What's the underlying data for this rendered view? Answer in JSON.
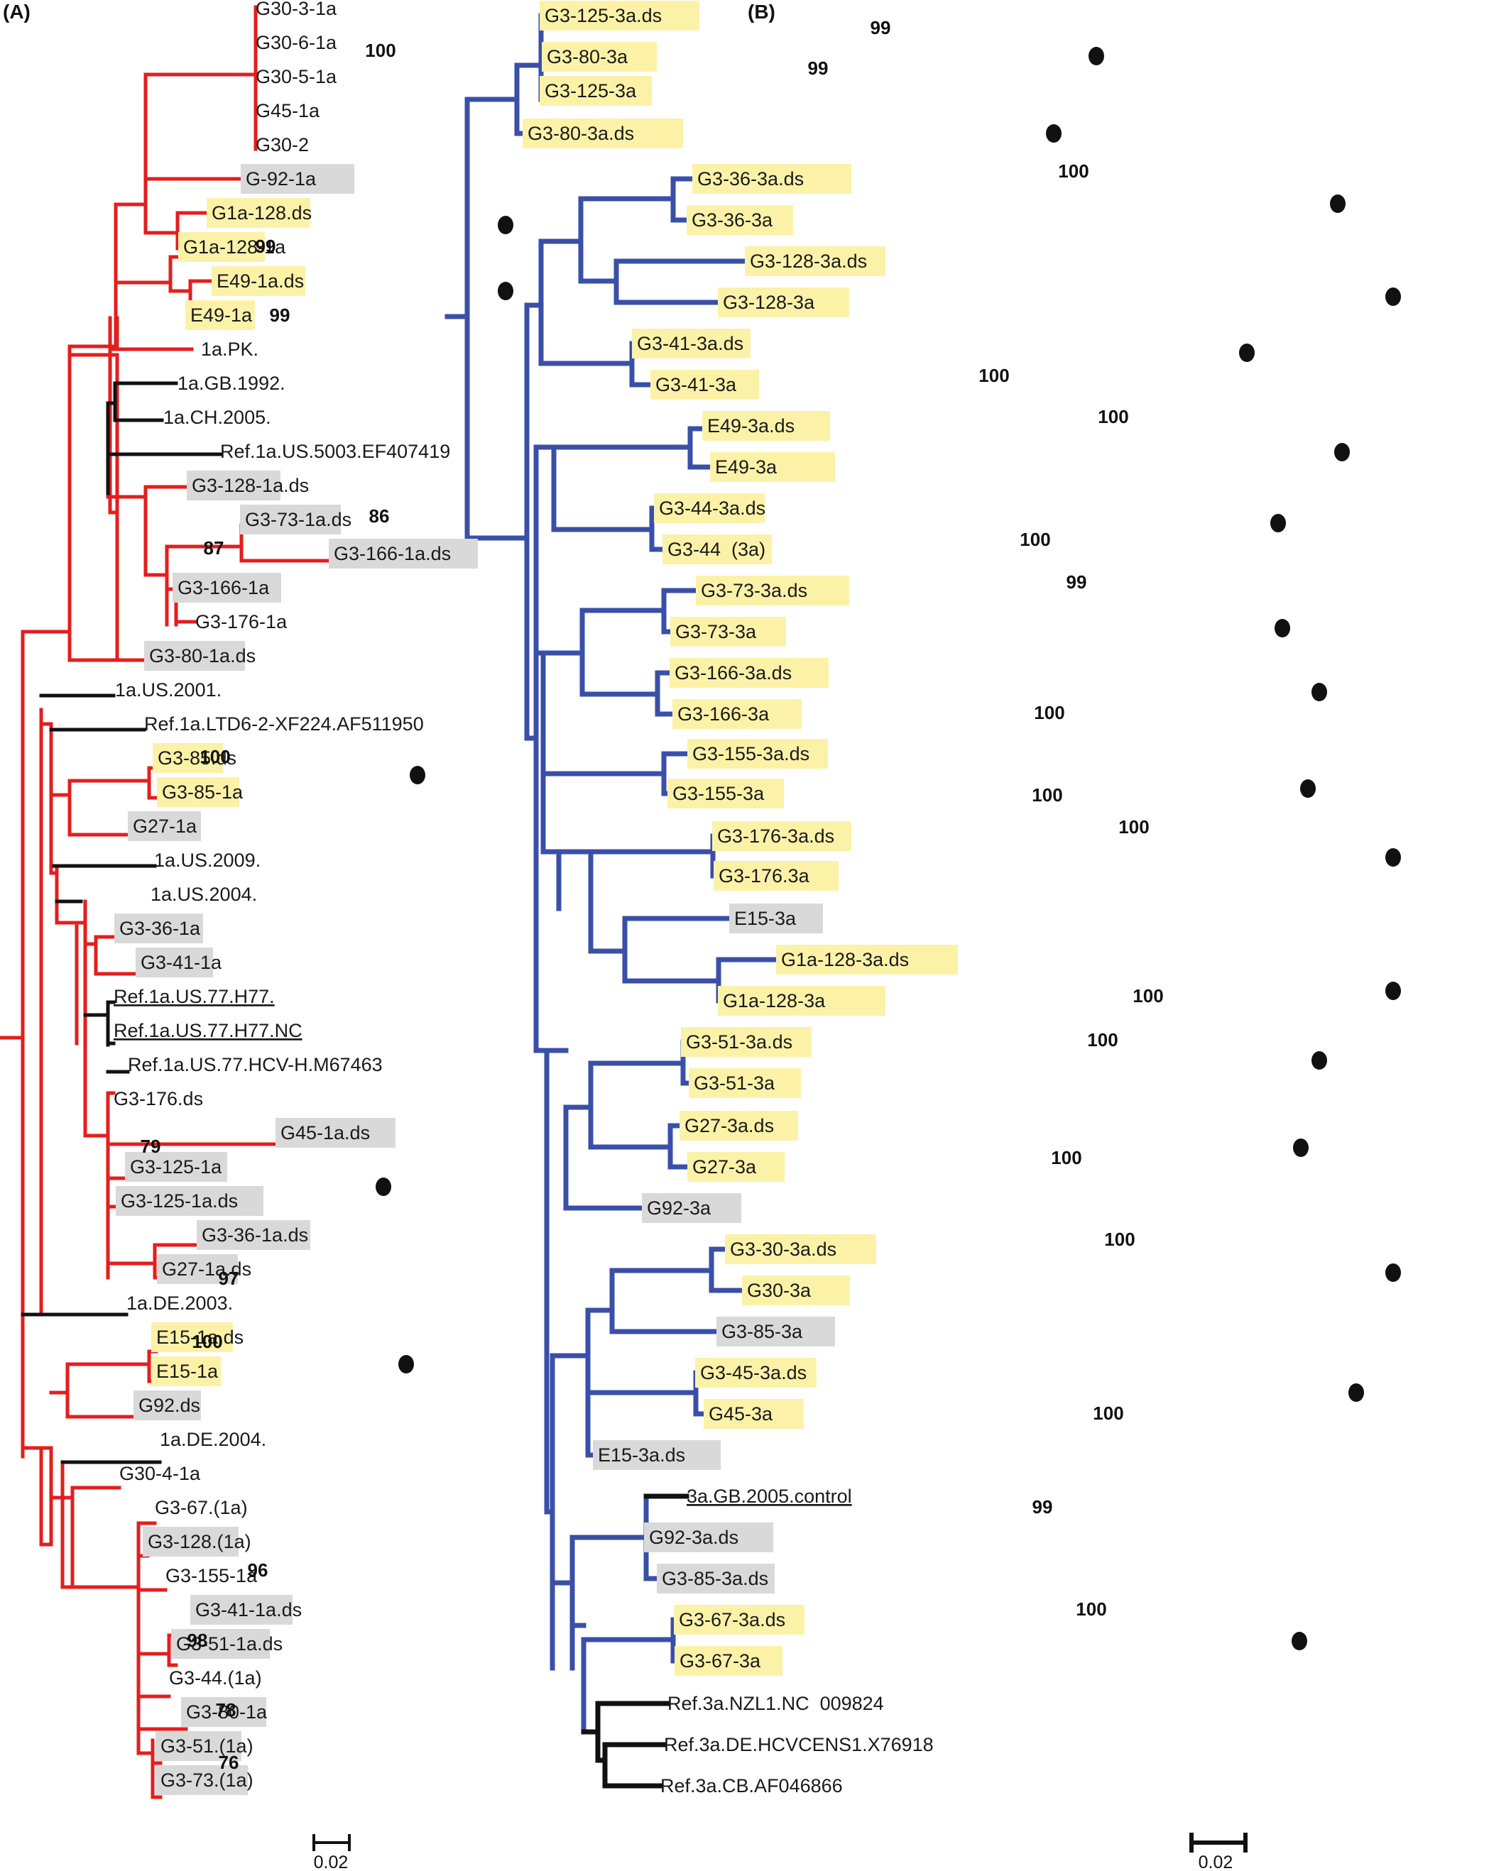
{
  "colors": {
    "genotype_1a": "#e41e1e",
    "genotype_3a": "#3a4fa8",
    "reference": "#111111",
    "yellow_box": "#fbf2a8",
    "grey_box": "#d9d9d9"
  },
  "panels": [
    {
      "label": "(A)",
      "scale_label": "0.02",
      "taxa": [
        {
          "id": "a1",
          "text": "G30-3-1a",
          "box": "none"
        },
        {
          "id": "a2",
          "text": "G30-6-1a",
          "box": "none"
        },
        {
          "id": "a3",
          "text": "G30-5-1a",
          "box": "none"
        },
        {
          "id": "a4",
          "text": "G45-1a",
          "box": "none"
        },
        {
          "id": "a5",
          "text": "G30-2",
          "box": "none"
        },
        {
          "id": "a6",
          "text": "G-92-1a",
          "box": "grey"
        },
        {
          "id": "a7",
          "text": "G1a-128.ds",
          "box": "yellow",
          "dot": true
        },
        {
          "id": "a8",
          "text": "G1a-128-1a",
          "box": "yellow"
        },
        {
          "id": "a9",
          "text": "E49-1a.ds",
          "box": "yellow",
          "dot": true
        },
        {
          "id": "a10",
          "text": "E49-1a",
          "box": "yellow"
        },
        {
          "id": "a11",
          "text": "1a.PK.",
          "box": "none"
        },
        {
          "id": "a12",
          "text": "1a.GB.1992.",
          "box": "none",
          "ref": true
        },
        {
          "id": "a13",
          "text": "1a.CH.2005.",
          "box": "none",
          "ref": true
        },
        {
          "id": "a14",
          "text": "Ref.1a.US.5003.EF407419",
          "box": "none",
          "ref": true
        },
        {
          "id": "a15",
          "text": "G3-128-1a.ds",
          "box": "grey"
        },
        {
          "id": "a16",
          "text": "G3-73-1a.ds",
          "box": "grey"
        },
        {
          "id": "a17",
          "text": "G3-166-1a.ds",
          "box": "grey"
        },
        {
          "id": "a18",
          "text": "G3-166-1a",
          "box": "grey"
        },
        {
          "id": "a19",
          "text": "G3-176-1a",
          "box": "none"
        },
        {
          "id": "a20",
          "text": "G3-80-1a.ds",
          "box": "grey"
        },
        {
          "id": "a21",
          "text": "1a.US.2001.",
          "box": "none",
          "ref": true
        },
        {
          "id": "a22",
          "text": "Ref.1a.LTD6-2-XF224.AF511950",
          "box": "none",
          "ref": true
        },
        {
          "id": "a23",
          "text": "G3-85.ds",
          "box": "yellow",
          "dot": true
        },
        {
          "id": "a24",
          "text": "G3-85-1a",
          "box": "yellow"
        },
        {
          "id": "a25",
          "text": "G27-1a",
          "box": "grey"
        },
        {
          "id": "a26",
          "text": "1a.US.2009.",
          "box": "none",
          "ref": true
        },
        {
          "id": "a27",
          "text": "1a.US.2004.",
          "box": "none",
          "ref": true
        },
        {
          "id": "a28",
          "text": "G3-36-1a",
          "box": "grey"
        },
        {
          "id": "a29",
          "text": "G3-41-1a",
          "box": "grey"
        },
        {
          "id": "a30",
          "text": "Ref.1a.US.77.H77.",
          "box": "none",
          "ref": true,
          "underline": true
        },
        {
          "id": "a31",
          "text": "Ref.1a.US.77.H77.NC",
          "box": "none",
          "ref": true,
          "underline": true
        },
        {
          "id": "a32",
          "text": "Ref.1a.US.77.HCV-H.M67463",
          "box": "none",
          "ref": true
        },
        {
          "id": "a33",
          "text": "G3-176.ds",
          "box": "none"
        },
        {
          "id": "a34",
          "text": "G45-1a.ds",
          "box": "grey"
        },
        {
          "id": "a35",
          "text": "G3-125-1a",
          "box": "grey",
          "dot": true
        },
        {
          "id": "a36",
          "text": "G3-125-1a.ds",
          "box": "grey"
        },
        {
          "id": "a37",
          "text": "G3-36-1a.ds",
          "box": "grey"
        },
        {
          "id": "a38",
          "text": "G27-1a.ds",
          "box": "grey"
        },
        {
          "id": "a39",
          "text": "1a.DE.2003.",
          "box": "none",
          "ref": true
        },
        {
          "id": "a40",
          "text": "E15-1a.ds",
          "box": "yellow",
          "dot": true
        },
        {
          "id": "a41",
          "text": "E15-1a",
          "box": "yellow"
        },
        {
          "id": "a42",
          "text": "G92.ds",
          "box": "grey"
        },
        {
          "id": "a43",
          "text": "1a.DE.2004.",
          "box": "none",
          "ref": true
        },
        {
          "id": "a44",
          "text": "G30-4-1a",
          "box": "none"
        },
        {
          "id": "a45",
          "text": "G3-67.(1a)",
          "box": "none"
        },
        {
          "id": "a46",
          "text": "G3-128.(1a)",
          "box": "grey"
        },
        {
          "id": "a47",
          "text": "G3-155-1a",
          "box": "none"
        },
        {
          "id": "a48",
          "text": "G3-41-1a.ds",
          "box": "grey"
        },
        {
          "id": "a49",
          "text": "G3-51-1a.ds",
          "box": "grey"
        },
        {
          "id": "a50",
          "text": "G3-44.(1a)",
          "box": "none"
        },
        {
          "id": "a51",
          "text": "G3-80-1a",
          "box": "grey"
        },
        {
          "id": "a52",
          "text": "G3-51.(1a)",
          "box": "grey"
        },
        {
          "id": "a53",
          "text": "G3-73.(1a)",
          "box": "grey"
        }
      ],
      "bootstrap": [
        "100",
        "99",
        "99",
        "86",
        "87",
        "100",
        "79",
        "97",
        "100",
        "96",
        "98",
        "78",
        "76"
      ]
    },
    {
      "label": "(B)",
      "scale_label": "0.02",
      "taxa": [
        {
          "id": "b1",
          "text": "G3-125-3a.ds",
          "box": "yellow"
        },
        {
          "id": "b2",
          "text": "G3-80-3a",
          "box": "yellow",
          "dot": true
        },
        {
          "id": "b3",
          "text": "G3-125-3a",
          "box": "yellow"
        },
        {
          "id": "b4",
          "text": "G3-80-3a.ds",
          "box": "yellow",
          "dot": true
        },
        {
          "id": "b5",
          "text": "G3-36-3a.ds",
          "box": "yellow",
          "dot": true
        },
        {
          "id": "b6",
          "text": "G3-36-3a",
          "box": "yellow"
        },
        {
          "id": "b7",
          "text": "G3-128-3a.ds",
          "box": "yellow"
        },
        {
          "id": "b8",
          "text": "G3-128-3a",
          "box": "yellow",
          "dot": true
        },
        {
          "id": "b9",
          "text": "G3-41-3a.ds",
          "box": "yellow",
          "dot": true
        },
        {
          "id": "b10",
          "text": "G3-41-3a",
          "box": "yellow"
        },
        {
          "id": "b11",
          "text": "E49-3a.ds",
          "box": "yellow"
        },
        {
          "id": "b12",
          "text": "E49-3a",
          "box": "yellow",
          "dot": true
        },
        {
          "id": "b13",
          "text": "G3-44-3a.ds",
          "box": "yellow",
          "dot": true
        },
        {
          "id": "b14",
          "text": "G3-44  (3a)",
          "box": "yellow"
        },
        {
          "id": "b15",
          "text": "G3-73-3a.ds",
          "box": "yellow"
        },
        {
          "id": "b16",
          "text": "G3-73-3a",
          "box": "yellow",
          "dot": true
        },
        {
          "id": "b17",
          "text": "G3-166-3a.ds",
          "box": "yellow",
          "dot": true
        },
        {
          "id": "b18",
          "text": "G3-166-3a",
          "box": "yellow"
        },
        {
          "id": "b19",
          "text": "G3-155-3a.ds",
          "box": "yellow"
        },
        {
          "id": "b20",
          "text": "G3-155-3a",
          "box": "yellow",
          "dot": true
        },
        {
          "id": "b21",
          "text": "G3-176-3a.ds",
          "box": "yellow",
          "dot": true
        },
        {
          "id": "b22",
          "text": "G3-176.3a",
          "box": "yellow"
        },
        {
          "id": "b23",
          "text": "E15-3a",
          "box": "grey"
        },
        {
          "id": "b24",
          "text": "G1a-128-3a.ds",
          "box": "yellow"
        },
        {
          "id": "b25",
          "text": "G1a-128-3a",
          "box": "yellow",
          "dot": true
        },
        {
          "id": "b26",
          "text": "G3-51-3a.ds",
          "box": "yellow",
          "dot": true
        },
        {
          "id": "b27",
          "text": "G3-51-3a",
          "box": "yellow"
        },
        {
          "id": "b28",
          "text": "G27-3a.ds",
          "box": "yellow"
        },
        {
          "id": "b29",
          "text": "G27-3a",
          "box": "yellow",
          "dot": true
        },
        {
          "id": "b30",
          "text": "G92-3a",
          "box": "grey"
        },
        {
          "id": "b31",
          "text": "G3-30-3a.ds",
          "box": "yellow",
          "dot": true
        },
        {
          "id": "b32",
          "text": "G30-3a",
          "box": "yellow"
        },
        {
          "id": "b33",
          "text": "G3-85-3a",
          "box": "grey"
        },
        {
          "id": "b34",
          "text": "G3-45-3a.ds",
          "box": "yellow"
        },
        {
          "id": "b35",
          "text": "G45-3a",
          "box": "yellow",
          "dot": true
        },
        {
          "id": "b36",
          "text": "E15-3a.ds",
          "box": "grey"
        },
        {
          "id": "b37",
          "text": "3a.GB.2005.control",
          "box": "none",
          "ref": true,
          "underline": true
        },
        {
          "id": "b38",
          "text": "G92-3a.ds",
          "box": "grey"
        },
        {
          "id": "b39",
          "text": "G3-85-3a.ds",
          "box": "grey"
        },
        {
          "id": "b40",
          "text": "G3-67-3a.ds",
          "box": "yellow",
          "dot": true
        },
        {
          "id": "b41",
          "text": "G3-67-3a",
          "box": "yellow"
        },
        {
          "id": "b42",
          "text": "Ref.3a.NZL1.NC  009824",
          "box": "none",
          "ref": true
        },
        {
          "id": "b43",
          "text": "Ref.3a.DE.HCVCENS1.X76918",
          "box": "none",
          "ref": true
        },
        {
          "id": "b44",
          "text": "Ref.3a.CB.AF046866",
          "box": "none",
          "ref": true
        }
      ],
      "bootstrap": [
        "99",
        "99",
        "100",
        "100",
        "100",
        "100",
        "99",
        "100",
        "100",
        "100",
        "100",
        "100",
        "100",
        "100",
        "100",
        "99",
        "100"
      ]
    }
  ]
}
